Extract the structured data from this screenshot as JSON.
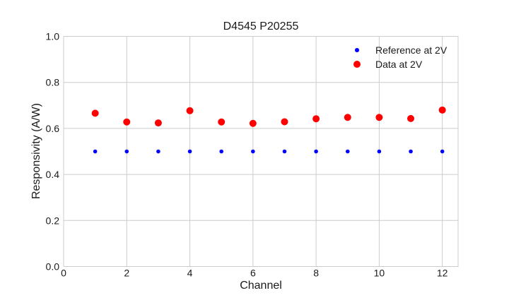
{
  "figure": {
    "background": "#ffffff"
  },
  "chart_data": {
    "type": "scatter",
    "title": "D4545 P20255",
    "xlabel": "Channel",
    "ylabel": "Responsivity (A/W)",
    "xlim": [
      0,
      12.5
    ],
    "ylim": [
      0.0,
      1.0
    ],
    "xticks": [
      0,
      2,
      4,
      6,
      8,
      10,
      12
    ],
    "yticks": [
      0.0,
      0.2,
      0.4,
      0.6,
      0.8,
      1.0
    ],
    "grid": true,
    "legend_position": "upper right",
    "x": [
      1,
      2,
      3,
      4,
      5,
      6,
      7,
      8,
      9,
      10,
      11,
      12
    ],
    "series": [
      {
        "name": "Reference at 2V",
        "color": "#0000ff",
        "marker_radius": 2.8,
        "values": [
          0.5,
          0.5,
          0.5,
          0.5,
          0.5,
          0.5,
          0.5,
          0.5,
          0.5,
          0.5,
          0.5,
          0.5
        ]
      },
      {
        "name": "Data at 2V",
        "color": "#ff0000",
        "marker_radius": 5,
        "values": [
          0.666,
          0.628,
          0.624,
          0.677,
          0.628,
          0.622,
          0.629,
          0.642,
          0.648,
          0.648,
          0.643,
          0.68
        ]
      }
    ],
    "colors": {
      "grid": "#cccccc",
      "spine": "#cccccc",
      "text": "#1a1a1a"
    }
  }
}
